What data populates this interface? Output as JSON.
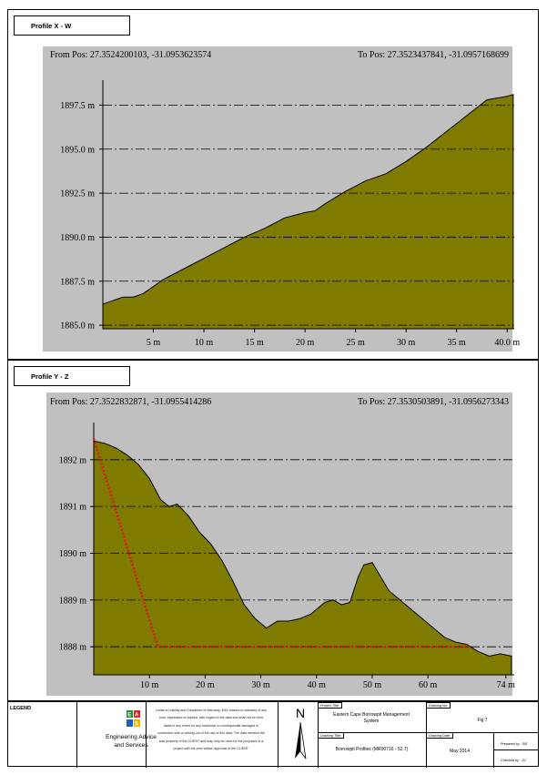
{
  "panels": [
    {
      "id": "x",
      "title": "Profile X - W",
      "from_pos": "From Pos: 27.3524200103, -31.0953623574",
      "to_pos": "To Pos: 27.3523437841, -31.0957168699"
    },
    {
      "id": "y",
      "title": "Profile Y - Z",
      "from_pos": "From Pos: 27.3522832871, -31.0955414286",
      "to_pos": "To Pos: 27.3530503891, -31.0956273343"
    }
  ],
  "chart_data": [
    {
      "type": "area",
      "title": "Profile X - W",
      "xlim": [
        0,
        40.7
      ],
      "ylim": [
        1884.8,
        1898.4
      ],
      "fill_color": "#7f7b00",
      "plot_bg": "#c0c0c0",
      "x_ticks": [
        5,
        10,
        15,
        20,
        25,
        30,
        35,
        40
      ],
      "x_tick_labels": [
        "5 m",
        "10 m",
        "15 m",
        "20 m",
        "25 m",
        "30 m",
        "35 m",
        "40.0 m"
      ],
      "y_ticks": [
        1885.0,
        1887.5,
        1890.0,
        1892.5,
        1895.0,
        1897.5
      ],
      "y_tick_labels": [
        "1885.0 m",
        "1887.5 m",
        "1890.0 m",
        "1892.5 m",
        "1895.0 m",
        "1897.5 m"
      ],
      "x": [
        0,
        1,
        2,
        3,
        4,
        5,
        6,
        8,
        10,
        12,
        14,
        16,
        18,
        20,
        21,
        22,
        24,
        26,
        27,
        28,
        30,
        32,
        34,
        36,
        38,
        40,
        40.6
      ],
      "y": [
        1886.2,
        1886.4,
        1886.6,
        1886.6,
        1886.8,
        1887.2,
        1887.6,
        1888.2,
        1888.8,
        1889.4,
        1890.0,
        1890.5,
        1891.1,
        1891.4,
        1891.5,
        1891.9,
        1892.6,
        1893.2,
        1893.4,
        1893.6,
        1894.3,
        1895.1,
        1896.0,
        1896.9,
        1897.8,
        1898.0,
        1898.1
      ]
    },
    {
      "type": "area",
      "title": "Profile Y - Z",
      "xlim": [
        0,
        75.5
      ],
      "ylim": [
        1887.4,
        1892.6
      ],
      "fill_color": "#7f7b00",
      "plot_bg": "#c0c0c0",
      "x_ticks": [
        10,
        20,
        30,
        40,
        50,
        60,
        74
      ],
      "x_tick_labels": [
        "10 m",
        "20 m",
        "30 m",
        "40 m",
        "50 m",
        "60 m",
        "74 m"
      ],
      "y_ticks": [
        1888,
        1889,
        1890,
        1891,
        1892
      ],
      "y_tick_labels": [
        "1888 m",
        "1889 m",
        "1890 m",
        "1891 m",
        "1892 m"
      ],
      "x": [
        0,
        2,
        4,
        6,
        8,
        10,
        12,
        13.5,
        15,
        17,
        19,
        21,
        23,
        25,
        27,
        29,
        31,
        33,
        35,
        37,
        39,
        40,
        41.5,
        43,
        44.5,
        46,
        47.5,
        48.5,
        50,
        51.5,
        53,
        55,
        57,
        59,
        61,
        63,
        65,
        67,
        69,
        71,
        73,
        75
      ],
      "y": [
        1892.4,
        1892.35,
        1892.25,
        1892.1,
        1891.9,
        1891.6,
        1891.15,
        1891.0,
        1891.05,
        1890.8,
        1890.45,
        1890.2,
        1889.85,
        1889.4,
        1888.9,
        1888.6,
        1888.4,
        1888.55,
        1888.55,
        1888.6,
        1888.7,
        1888.8,
        1888.95,
        1889.0,
        1888.9,
        1888.95,
        1889.5,
        1889.75,
        1889.8,
        1889.5,
        1889.2,
        1889.0,
        1888.8,
        1888.6,
        1888.4,
        1888.2,
        1888.1,
        1888.05,
        1887.9,
        1887.8,
        1887.85,
        1887.8
      ],
      "overlay_line": {
        "color": "#e01010",
        "x": [
          0,
          11.5,
          67.5
        ],
        "y": [
          1892.45,
          1888.0,
          1888.0
        ]
      }
    }
  ],
  "footer": {
    "legend_label": "LEGEND",
    "company_line1": "Engineering Advice",
    "company_line2": "and Services",
    "disclaimer": "Limits of Liability and Disclaimer of Warranty: EAS makes no warranty of any kind, expressed or implied, with regard to the data and shall not be held liable in any event for any incidental or consequential damages in connection with or arising out of the use of this data. The data remains the sole property of the CLIENT and may only be used for the purposes of a project with the prior written approval of the CLIENT.",
    "north_letter": "N",
    "project_title_label": "Project Title:",
    "project_title": "Eastern Cape Borrowpit Management System",
    "drawing_title_label": "Drawing Title:",
    "drawing_title": "Borrowpit Profiles (MR00716 - 52.7)",
    "drawing_no_label": "Drawing No:",
    "drawing_no": "Fig 7",
    "drawing_date_label": "Drawing Date:",
    "drawing_date": "May 2014",
    "prepared_by": "Prepared by : SB",
    "checked_by": "Checked by : JV"
  }
}
